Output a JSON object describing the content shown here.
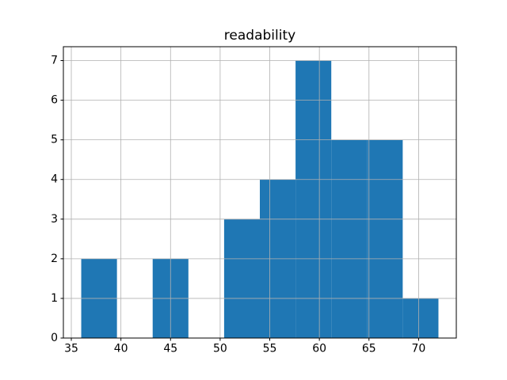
{
  "window": {
    "background": "#ffffff"
  },
  "chart_data": {
    "type": "bar",
    "subtype": "histogram",
    "title": "readability",
    "xlabel": "",
    "ylabel": "",
    "legend": "none",
    "grid": true,
    "bin_edges": [
      36.0,
      39.6,
      43.2,
      46.8,
      50.4,
      54.0,
      57.6,
      61.2,
      64.8,
      68.4,
      72.0
    ],
    "counts": [
      2,
      0,
      2,
      0,
      3,
      4,
      7,
      5,
      5,
      1
    ],
    "xticks": [
      35,
      40,
      45,
      50,
      55,
      60,
      65,
      70
    ],
    "yticks": [
      0,
      1,
      2,
      3,
      4,
      5,
      6,
      7
    ],
    "xlim": [
      34.2,
      73.8
    ],
    "ylim": [
      0,
      7.35
    ],
    "bar_color": "#1f77b4",
    "grid_color": "#b0b0b0",
    "axis_color": "#000000",
    "text_color": "#000000"
  }
}
